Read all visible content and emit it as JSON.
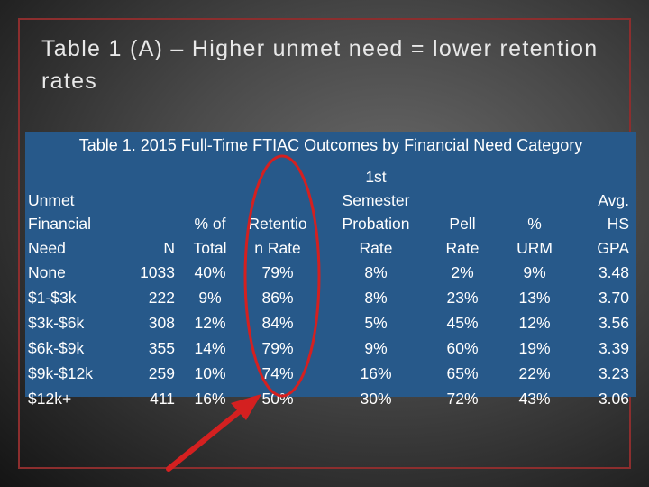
{
  "slide": {
    "title": "Table 1 (A) – Higher unmet need = lower retention rates"
  },
  "table": {
    "caption": "Table 1. 2015 Full-Time FTIAC Outcomes by Financial Need Category",
    "headers": {
      "need": [
        "Unmet",
        "Financial",
        "Need"
      ],
      "n": [
        "N"
      ],
      "pct_total": [
        "% of",
        "Total"
      ],
      "retention": [
        "Retentio",
        "n Rate"
      ],
      "probation": [
        "1st",
        "Semester",
        "Probation",
        "Rate"
      ],
      "pell": [
        "Pell",
        "Rate"
      ],
      "urm": [
        "%",
        "URM"
      ],
      "gpa": [
        "Avg.",
        "HS",
        "GPA"
      ]
    },
    "rows": [
      {
        "need": "None",
        "n": "1033",
        "pct_total": "40%",
        "retention": "79%",
        "probation": "8%",
        "pell": "2%",
        "urm": "9%",
        "gpa": "3.48"
      },
      {
        "need": "$1-$3k",
        "n": "222",
        "pct_total": "9%",
        "retention": "86%",
        "probation": "8%",
        "pell": "23%",
        "urm": "13%",
        "gpa": "3.70"
      },
      {
        "need": "$3k-$6k",
        "n": "308",
        "pct_total": "12%",
        "retention": "84%",
        "probation": "5%",
        "pell": "45%",
        "urm": "12%",
        "gpa": "3.56"
      },
      {
        "need": "$6k-$9k",
        "n": "355",
        "pct_total": "14%",
        "retention": "79%",
        "probation": "9%",
        "pell": "60%",
        "urm": "19%",
        "gpa": "3.39"
      },
      {
        "need": "$9k-$12k",
        "n": "259",
        "pct_total": "10%",
        "retention": "74%",
        "probation": "16%",
        "pell": "65%",
        "urm": "22%",
        "gpa": "3.23"
      },
      {
        "need": "$12k+",
        "n": "411",
        "pct_total": "16%",
        "retention": "50%",
        "probation": "30%",
        "pell": "72%",
        "urm": "43%",
        "gpa": "3.06"
      }
    ]
  },
  "annotation": {
    "color": "#d42020"
  }
}
